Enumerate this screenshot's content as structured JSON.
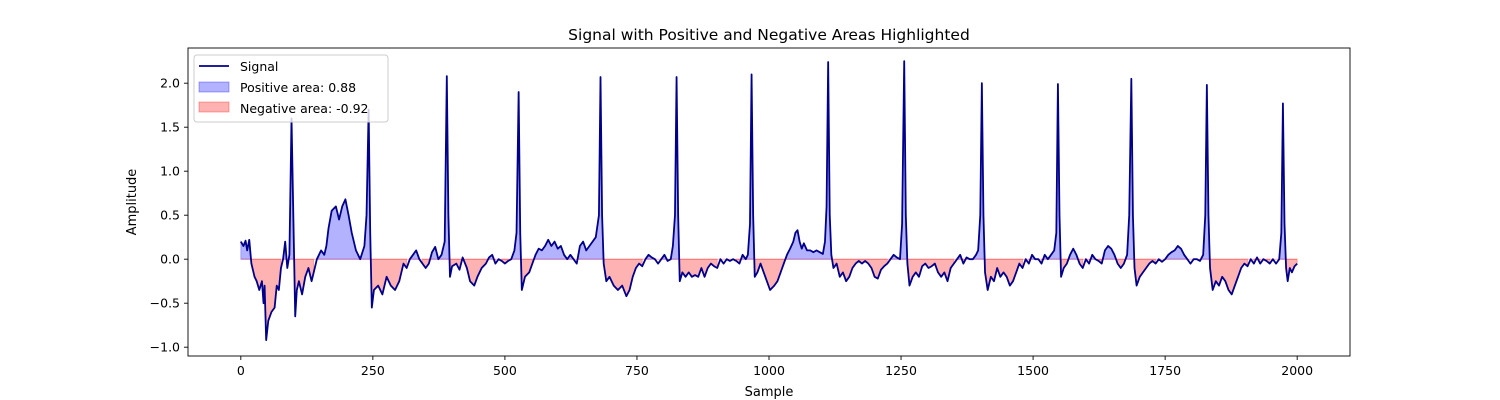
{
  "chart_data": {
    "type": "area",
    "title": "Signal with Positive and Negative Areas Highlighted",
    "xlabel": "Sample",
    "ylabel": "Amplitude",
    "xlim": [
      -100,
      2100
    ],
    "ylim": [
      -1.1,
      2.4
    ],
    "xticks": [
      0,
      250,
      500,
      750,
      1000,
      1250,
      1500,
      1750,
      2000
    ],
    "yticks": [
      -1.0,
      -0.5,
      0.0,
      0.5,
      1.0,
      1.5,
      2.0
    ],
    "ytick_labels": [
      "−1.0",
      "−0.5",
      "0.0",
      "0.5",
      "1.0",
      "1.5",
      "2.0"
    ],
    "grid": false,
    "legend_position": "upper-left",
    "colors": {
      "signal": "#00008b",
      "positive_fill": "#0000ff",
      "negative_fill": "#ff0000",
      "fill_alpha": 0.3
    },
    "series": [
      {
        "name": "Signal",
        "kind": "line"
      },
      {
        "name": "Positive area: 0.88",
        "kind": "fill-positive"
      },
      {
        "name": "Negative area: -0.92",
        "kind": "fill-negative"
      }
    ],
    "points": [
      [
        0,
        0.2
      ],
      [
        5,
        0.15
      ],
      [
        9,
        0.21
      ],
      [
        12,
        0.1
      ],
      [
        16,
        0.22
      ],
      [
        20,
        -0.05
      ],
      [
        26,
        -0.2
      ],
      [
        30,
        -0.25
      ],
      [
        35,
        -0.35
      ],
      [
        40,
        -0.25
      ],
      [
        43,
        -0.5
      ],
      [
        45,
        -0.3
      ],
      [
        48,
        -0.92
      ],
      [
        52,
        -0.7
      ],
      [
        58,
        -0.6
      ],
      [
        64,
        -0.55
      ],
      [
        68,
        -0.3
      ],
      [
        72,
        -0.35
      ],
      [
        76,
        -0.1
      ],
      [
        80,
        0.0
      ],
      [
        84,
        0.2
      ],
      [
        88,
        -0.1
      ],
      [
        92,
        0.05
      ],
      [
        96,
        1.6
      ],
      [
        100,
        0.3
      ],
      [
        103,
        -0.65
      ],
      [
        106,
        -0.35
      ],
      [
        110,
        -0.25
      ],
      [
        116,
        -0.4
      ],
      [
        122,
        -0.2
      ],
      [
        128,
        -0.1
      ],
      [
        134,
        -0.25
      ],
      [
        138,
        -0.15
      ],
      [
        144,
        0.0
      ],
      [
        152,
        0.1
      ],
      [
        158,
        0.05
      ],
      [
        162,
        0.15
      ],
      [
        166,
        0.35
      ],
      [
        172,
        0.55
      ],
      [
        180,
        0.6
      ],
      [
        186,
        0.45
      ],
      [
        192,
        0.6
      ],
      [
        198,
        0.68
      ],
      [
        204,
        0.5
      ],
      [
        210,
        0.3
      ],
      [
        218,
        0.1
      ],
      [
        226,
        0.0
      ],
      [
        234,
        0.15
      ],
      [
        238,
        0.5
      ],
      [
        242,
        1.7
      ],
      [
        245,
        0.3
      ],
      [
        248,
        -0.55
      ],
      [
        252,
        -0.35
      ],
      [
        260,
        -0.3
      ],
      [
        268,
        -0.4
      ],
      [
        276,
        -0.2
      ],
      [
        284,
        -0.3
      ],
      [
        292,
        -0.35
      ],
      [
        300,
        -0.25
      ],
      [
        308,
        -0.05
      ],
      [
        314,
        -0.1
      ],
      [
        320,
        0.0
      ],
      [
        326,
        0.05
      ],
      [
        332,
        0.1
      ],
      [
        338,
        0.0
      ],
      [
        344,
        -0.05
      ],
      [
        350,
        -0.1
      ],
      [
        356,
        -0.05
      ],
      [
        362,
        0.08
      ],
      [
        368,
        0.14
      ],
      [
        374,
        0.0
      ],
      [
        380,
        0.05
      ],
      [
        386,
        0.2
      ],
      [
        390,
        2.08
      ],
      [
        393,
        0.5
      ],
      [
        396,
        -0.2
      ],
      [
        400,
        -0.08
      ],
      [
        408,
        -0.05
      ],
      [
        414,
        -0.12
      ],
      [
        420,
        0.02
      ],
      [
        428,
        -0.1
      ],
      [
        434,
        -0.25
      ],
      [
        442,
        -0.3
      ],
      [
        448,
        -0.2
      ],
      [
        456,
        -0.1
      ],
      [
        464,
        -0.05
      ],
      [
        470,
        0.02
      ],
      [
        476,
        0.05
      ],
      [
        482,
        -0.05
      ],
      [
        488,
        0.0
      ],
      [
        494,
        -0.02
      ],
      [
        500,
        -0.05
      ],
      [
        506,
        -0.02
      ],
      [
        512,
        0.0
      ],
      [
        518,
        0.1
      ],
      [
        522,
        0.3
      ],
      [
        526,
        1.9
      ],
      [
        529,
        0.3
      ],
      [
        532,
        -0.35
      ],
      [
        538,
        -0.2
      ],
      [
        546,
        -0.15
      ],
      [
        552,
        -0.05
      ],
      [
        558,
        0.05
      ],
      [
        564,
        0.12
      ],
      [
        570,
        0.1
      ],
      [
        576,
        0.15
      ],
      [
        582,
        0.22
      ],
      [
        588,
        0.15
      ],
      [
        594,
        0.2
      ],
      [
        600,
        0.12
      ],
      [
        606,
        0.15
      ],
      [
        612,
        0.05
      ],
      [
        618,
        0.0
      ],
      [
        624,
        0.05
      ],
      [
        630,
        0.0
      ],
      [
        636,
        -0.05
      ],
      [
        642,
        0.15
      ],
      [
        648,
        0.2
      ],
      [
        654,
        0.1
      ],
      [
        660,
        0.15
      ],
      [
        666,
        0.2
      ],
      [
        672,
        0.25
      ],
      [
        678,
        0.5
      ],
      [
        681,
        2.07
      ],
      [
        684,
        0.5
      ],
      [
        687,
        -0.05
      ],
      [
        692,
        -0.25
      ],
      [
        698,
        -0.2
      ],
      [
        706,
        -0.3
      ],
      [
        714,
        -0.35
      ],
      [
        722,
        -0.3
      ],
      [
        730,
        -0.42
      ],
      [
        736,
        -0.35
      ],
      [
        742,
        -0.2
      ],
      [
        748,
        -0.1
      ],
      [
        754,
        -0.05
      ],
      [
        760,
        -0.08
      ],
      [
        766,
        0.0
      ],
      [
        772,
        0.05
      ],
      [
        778,
        0.02
      ],
      [
        784,
        0.0
      ],
      [
        790,
        -0.05
      ],
      [
        796,
        0.0
      ],
      [
        802,
        0.05
      ],
      [
        808,
        -0.02
      ],
      [
        814,
        0.0
      ],
      [
        818,
        0.15
      ],
      [
        822,
        0.5
      ],
      [
        825,
        2.07
      ],
      [
        828,
        0.5
      ],
      [
        831,
        -0.25
      ],
      [
        836,
        -0.15
      ],
      [
        842,
        -0.2
      ],
      [
        848,
        -0.15
      ],
      [
        854,
        -0.2
      ],
      [
        860,
        -0.18
      ],
      [
        866,
        -0.2
      ],
      [
        872,
        -0.1
      ],
      [
        878,
        -0.2
      ],
      [
        884,
        -0.1
      ],
      [
        890,
        -0.05
      ],
      [
        896,
        -0.08
      ],
      [
        902,
        -0.1
      ],
      [
        908,
        0.0
      ],
      [
        914,
        -0.05
      ],
      [
        920,
        0.0
      ],
      [
        926,
        -0.02
      ],
      [
        932,
        0.0
      ],
      [
        938,
        -0.02
      ],
      [
        944,
        -0.05
      ],
      [
        950,
        0.05
      ],
      [
        956,
        0.0
      ],
      [
        960,
        0.05
      ],
      [
        964,
        0.4
      ],
      [
        967,
        2.1
      ],
      [
        970,
        0.5
      ],
      [
        973,
        -0.2
      ],
      [
        978,
        -0.15
      ],
      [
        984,
        -0.05
      ],
      [
        990,
        -0.15
      ],
      [
        996,
        -0.25
      ],
      [
        1002,
        -0.35
      ],
      [
        1010,
        -0.3
      ],
      [
        1016,
        -0.25
      ],
      [
        1022,
        -0.15
      ],
      [
        1028,
        -0.05
      ],
      [
        1034,
        0.05
      ],
      [
        1040,
        0.12
      ],
      [
        1046,
        0.2
      ],
      [
        1050,
        0.3
      ],
      [
        1054,
        0.33
      ],
      [
        1058,
        0.2
      ],
      [
        1062,
        0.12
      ],
      [
        1066,
        0.18
      ],
      [
        1072,
        0.1
      ],
      [
        1078,
        0.1
      ],
      [
        1084,
        0.08
      ],
      [
        1090,
        0.1
      ],
      [
        1096,
        0.08
      ],
      [
        1102,
        0.06
      ],
      [
        1106,
        0.2
      ],
      [
        1109,
        0.6
      ],
      [
        1112,
        2.24
      ],
      [
        1115,
        0.5
      ],
      [
        1118,
        0.05
      ],
      [
        1122,
        -0.1
      ],
      [
        1128,
        -0.05
      ],
      [
        1134,
        -0.2
      ],
      [
        1140,
        -0.15
      ],
      [
        1146,
        -0.25
      ],
      [
        1152,
        -0.2
      ],
      [
        1158,
        -0.1
      ],
      [
        1164,
        -0.05
      ],
      [
        1170,
        -0.02
      ],
      [
        1176,
        -0.05
      ],
      [
        1182,
        -0.02
      ],
      [
        1188,
        -0.05
      ],
      [
        1194,
        -0.1
      ],
      [
        1200,
        -0.2
      ],
      [
        1206,
        -0.22
      ],
      [
        1212,
        -0.12
      ],
      [
        1218,
        -0.08
      ],
      [
        1224,
        -0.05
      ],
      [
        1230,
        0.0
      ],
      [
        1236,
        0.05
      ],
      [
        1242,
        0.02
      ],
      [
        1248,
        0.0
      ],
      [
        1252,
        0.4
      ],
      [
        1256,
        2.25
      ],
      [
        1259,
        0.5
      ],
      [
        1262,
        -0.05
      ],
      [
        1266,
        -0.3
      ],
      [
        1272,
        -0.2
      ],
      [
        1278,
        -0.15
      ],
      [
        1284,
        -0.2
      ],
      [
        1290,
        -0.08
      ],
      [
        1296,
        -0.05
      ],
      [
        1302,
        -0.1
      ],
      [
        1308,
        -0.08
      ],
      [
        1314,
        -0.05
      ],
      [
        1320,
        -0.15
      ],
      [
        1326,
        -0.2
      ],
      [
        1332,
        -0.15
      ],
      [
        1338,
        -0.25
      ],
      [
        1344,
        -0.1
      ],
      [
        1350,
        -0.05
      ],
      [
        1356,
        0.0
      ],
      [
        1362,
        0.05
      ],
      [
        1368,
        -0.05
      ],
      [
        1374,
        0.02
      ],
      [
        1380,
        0.0
      ],
      [
        1386,
        0.0
      ],
      [
        1392,
        0.05
      ],
      [
        1396,
        0.1
      ],
      [
        1400,
        0.5
      ],
      [
        1403,
        2.0
      ],
      [
        1406,
        0.5
      ],
      [
        1409,
        -0.15
      ],
      [
        1414,
        -0.35
      ],
      [
        1420,
        -0.2
      ],
      [
        1426,
        -0.25
      ],
      [
        1432,
        -0.1
      ],
      [
        1438,
        -0.2
      ],
      [
        1444,
        -0.15
      ],
      [
        1450,
        -0.2
      ],
      [
        1456,
        -0.3
      ],
      [
        1462,
        -0.25
      ],
      [
        1468,
        -0.15
      ],
      [
        1474,
        -0.05
      ],
      [
        1480,
        -0.1
      ],
      [
        1486,
        0.0
      ],
      [
        1492,
        -0.05
      ],
      [
        1498,
        0.05
      ],
      [
        1504,
        0.0
      ],
      [
        1510,
        0.0
      ],
      [
        1516,
        -0.05
      ],
      [
        1522,
        0.05
      ],
      [
        1528,
        0.0
      ],
      [
        1534,
        0.05
      ],
      [
        1540,
        0.1
      ],
      [
        1544,
        0.3
      ],
      [
        1547,
        1.99
      ],
      [
        1550,
        0.5
      ],
      [
        1553,
        -0.2
      ],
      [
        1558,
        -0.1
      ],
      [
        1564,
        -0.05
      ],
      [
        1570,
        0.05
      ],
      [
        1576,
        0.12
      ],
      [
        1582,
        0.05
      ],
      [
        1588,
        -0.05
      ],
      [
        1594,
        -0.1
      ],
      [
        1600,
        0.0
      ],
      [
        1606,
        -0.05
      ],
      [
        1612,
        0.05
      ],
      [
        1618,
        0.0
      ],
      [
        1624,
        -0.02
      ],
      [
        1630,
        -0.05
      ],
      [
        1636,
        0.1
      ],
      [
        1642,
        0.15
      ],
      [
        1648,
        0.12
      ],
      [
        1654,
        0.05
      ],
      [
        1660,
        -0.05
      ],
      [
        1666,
        -0.1
      ],
      [
        1672,
        -0.05
      ],
      [
        1678,
        0.05
      ],
      [
        1682,
        0.5
      ],
      [
        1686,
        2.05
      ],
      [
        1689,
        0.5
      ],
      [
        1692,
        -0.1
      ],
      [
        1696,
        -0.3
      ],
      [
        1702,
        -0.2
      ],
      [
        1708,
        -0.15
      ],
      [
        1714,
        -0.1
      ],
      [
        1720,
        -0.05
      ],
      [
        1726,
        -0.02
      ],
      [
        1732,
        -0.05
      ],
      [
        1738,
        0.0
      ],
      [
        1744,
        -0.03
      ],
      [
        1750,
        0.0
      ],
      [
        1756,
        0.05
      ],
      [
        1762,
        0.08
      ],
      [
        1768,
        0.1
      ],
      [
        1774,
        0.15
      ],
      [
        1780,
        0.12
      ],
      [
        1786,
        0.05
      ],
      [
        1792,
        0.0
      ],
      [
        1798,
        -0.05
      ],
      [
        1804,
        0.0
      ],
      [
        1810,
        0.0
      ],
      [
        1816,
        -0.02
      ],
      [
        1822,
        0.05
      ],
      [
        1826,
        0.5
      ],
      [
        1829,
        1.98
      ],
      [
        1832,
        0.5
      ],
      [
        1835,
        -0.1
      ],
      [
        1840,
        -0.35
      ],
      [
        1846,
        -0.25
      ],
      [
        1852,
        -0.3
      ],
      [
        1858,
        -0.2
      ],
      [
        1864,
        -0.25
      ],
      [
        1870,
        -0.35
      ],
      [
        1876,
        -0.4
      ],
      [
        1882,
        -0.3
      ],
      [
        1888,
        -0.2
      ],
      [
        1894,
        -0.1
      ],
      [
        1900,
        -0.05
      ],
      [
        1906,
        -0.08
      ],
      [
        1912,
        0.0
      ],
      [
        1918,
        -0.05
      ],
      [
        1924,
        0.02
      ],
      [
        1930,
        -0.05
      ],
      [
        1936,
        0.0
      ],
      [
        1942,
        -0.02
      ],
      [
        1948,
        -0.05
      ],
      [
        1954,
        0.0
      ],
      [
        1960,
        -0.05
      ],
      [
        1966,
        0.0
      ],
      [
        1970,
        0.3
      ],
      [
        1973,
        1.77
      ],
      [
        1976,
        0.4
      ],
      [
        1979,
        -0.1
      ],
      [
        1982,
        -0.25
      ],
      [
        1986,
        -0.1
      ],
      [
        1990,
        -0.15
      ],
      [
        1995,
        -0.08
      ],
      [
        2000,
        -0.05
      ]
    ]
  }
}
